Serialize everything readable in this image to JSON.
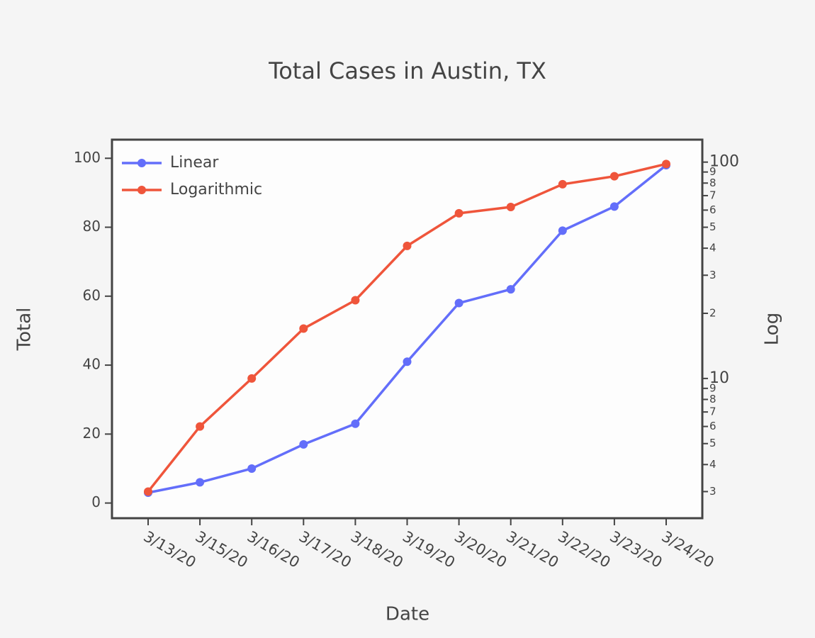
{
  "chart_data": {
    "type": "line",
    "title": "Total Cases in Austin, TX",
    "x_label": "Date",
    "y_label": "Total",
    "y2_label": "Log",
    "categories": [
      "3/13/20",
      "3/15/20",
      "3/16/20",
      "3/17/20",
      "3/18/20",
      "3/19/20",
      "3/20/20",
      "3/21/20",
      "3/22/20",
      "3/23/20",
      "3/24/20"
    ],
    "series": [
      {
        "name": "Linear",
        "color": "#636efa",
        "values": [
          3,
          6,
          10,
          17,
          23,
          41,
          58,
          62,
          79,
          86,
          98
        ]
      },
      {
        "name": "Logarithmic",
        "color": "#ef553b",
        "axis": "y2",
        "values": [
          3,
          6,
          10,
          17,
          23,
          41,
          58,
          62,
          79,
          86,
          98
        ]
      }
    ],
    "ylim": [
      -4.4,
      105.4
    ],
    "yticks": [
      0,
      20,
      40,
      60,
      80,
      100
    ],
    "y2lim": [
      2.26,
      127
    ],
    "y2_log": true,
    "y2ticks": [
      3,
      4,
      5,
      6,
      7,
      8,
      9,
      10,
      {
        "value": 20,
        "label": "2"
      },
      {
        "value": 30,
        "label": "3"
      },
      {
        "value": 40,
        "label": "4"
      },
      {
        "value": 50,
        "label": "5"
      },
      {
        "value": 60,
        "label": "6"
      },
      {
        "value": 70,
        "label": "7"
      },
      {
        "value": 80,
        "label": "8"
      },
      {
        "value": 90,
        "label": "9"
      },
      100
    ],
    "legend": "top-left",
    "grid": false
  }
}
